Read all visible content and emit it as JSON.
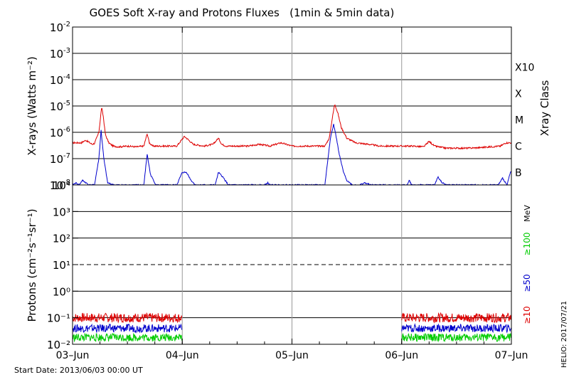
{
  "chart_data": [
    {
      "type": "line",
      "title": "GOES Soft X-ray and Protons Fluxes   (1min & 5min data)",
      "ylabel": "X-rays (Watts m⁻²)",
      "yscale": "log",
      "ylim": [
        1e-08,
        0.01
      ],
      "y_tick_base": "10",
      "y_tick_exponents": [
        "-8",
        "-7",
        "-6",
        "-5",
        "-4",
        "-3",
        "-2"
      ],
      "grid_levels": [
        1e-07,
        1e-06,
        1e-05,
        0.0001,
        0.001
      ],
      "right_axis_label": "Xray Class",
      "classes": [
        {
          "label": "B",
          "value": 1e-07
        },
        {
          "label": "C",
          "value": 1e-06
        },
        {
          "label": "M",
          "value": 1e-05
        },
        {
          "label": "X",
          "value": 0.0001
        },
        {
          "label": "X10",
          "value": 0.001
        }
      ],
      "series": [
        {
          "color": "#dd0000",
          "x": [
            0,
            0.08,
            0.12,
            0.18,
            0.2,
            0.24,
            0.265,
            0.28,
            0.3,
            0.33,
            0.37,
            0.42,
            0.5,
            0.58,
            0.65,
            0.68,
            0.7,
            0.73,
            0.78,
            0.85,
            0.95,
            1.02,
            1.06,
            1.1,
            1.2,
            1.28,
            1.33,
            1.36,
            1.4,
            1.5,
            1.6,
            1.7,
            1.8,
            1.9,
            2.0,
            2.1,
            2.2,
            2.3,
            2.34,
            2.37,
            2.39,
            2.42,
            2.45,
            2.5,
            2.58,
            2.7,
            2.8,
            2.9,
            3.0,
            3.1,
            3.2,
            3.25,
            3.3,
            3.4,
            3.5,
            3.6,
            3.7,
            3.8,
            3.9,
            3.95,
            4.0
          ],
          "y": [
            4e-07,
            4e-07,
            5e-07,
            3.5e-07,
            3.8e-07,
            1e-06,
            9e-06,
            4e-06,
            8e-07,
            4e-07,
            3e-07,
            2.8e-07,
            3e-07,
            2.8e-07,
            3e-07,
            9e-07,
            4e-07,
            3e-07,
            3e-07,
            3e-07,
            3e-07,
            7e-07,
            5e-07,
            3.5e-07,
            3e-07,
            3.5e-07,
            6e-07,
            3.5e-07,
            3e-07,
            3e-07,
            3e-07,
            3.5e-07,
            3e-07,
            4e-07,
            3e-07,
            3e-07,
            3e-07,
            3e-07,
            6e-07,
            4e-06,
            1.2e-05,
            5e-06,
            1.5e-06,
            6e-07,
            4e-07,
            3.5e-07,
            3e-07,
            3e-07,
            3e-07,
            3e-07,
            2.8e-07,
            4.5e-07,
            3e-07,
            2.5e-07,
            2.5e-07,
            2.5e-07,
            2.6e-07,
            2.8e-07,
            3e-07,
            4e-07,
            4e-07
          ]
        },
        {
          "color": "#0000cc",
          "x": [
            0,
            0.03,
            0.06,
            0.09,
            0.15,
            0.2,
            0.24,
            0.26,
            0.285,
            0.32,
            0.38,
            0.65,
            0.68,
            0.71,
            0.76,
            0.95,
            1.0,
            1.04,
            1.08,
            1.12,
            1.3,
            1.33,
            1.37,
            1.42,
            1.75,
            1.78,
            1.8,
            2.3,
            2.35,
            2.38,
            2.4,
            2.43,
            2.47,
            2.5,
            2.55,
            2.62,
            2.66,
            2.72,
            3.05,
            3.07,
            3.09,
            3.3,
            3.33,
            3.37,
            3.41,
            3.88,
            3.92,
            3.96,
            3.99
          ],
          "y": [
            1e-08,
            1.2e-08,
            1e-08,
            1.5e-08,
            1e-08,
            1e-08,
            1e-07,
            1.2e-06,
            1e-07,
            1.2e-08,
            1e-08,
            1e-08,
            1.5e-07,
            2.5e-08,
            1e-08,
            1e-08,
            3e-08,
            3e-08,
            1.5e-08,
            1e-08,
            1e-08,
            3e-08,
            2e-08,
            1e-08,
            1e-08,
            1.2e-08,
            1e-08,
            1e-08,
            6e-07,
            2e-06,
            8e-07,
            1.5e-07,
            3e-08,
            1.5e-08,
            1e-08,
            1e-08,
            1.2e-08,
            1e-08,
            1e-08,
            1.5e-08,
            1e-08,
            1e-08,
            2e-08,
            1.2e-08,
            1e-08,
            1e-08,
            1.8e-08,
            1e-08,
            3e-08
          ]
        }
      ]
    },
    {
      "type": "line",
      "ylabel": "Protons (cm⁻²s⁻¹sr⁻¹)",
      "yscale": "log",
      "ylim": [
        0.01,
        10000
      ],
      "y_tick_labels": [
        "10⁻²",
        "10⁻¹",
        "10⁰",
        "10¹",
        "10²",
        "10³",
        "10⁴"
      ],
      "grid_levels": [
        0.1,
        1,
        100,
        1000
      ],
      "dashed_level": 10,
      "unit_label": "MeV",
      "data_gap": [
        1.0,
        3.0
      ],
      "series": [
        {
          "name": "≥10",
          "color": "#dd0000",
          "x": [
            0,
            1.0,
            3.0,
            4.0
          ],
          "y": [
            0.1,
            0.1,
            0.1,
            0.1
          ]
        },
        {
          "name": "≥50",
          "color": "#0000cc",
          "x": [
            0,
            1.0,
            3.0,
            4.0
          ],
          "y": [
            0.04,
            0.04,
            0.04,
            0.04
          ]
        },
        {
          "name": "≥100",
          "color": "#00cc00",
          "x": [
            0,
            1.0,
            3.0,
            4.0
          ],
          "y": [
            0.018,
            0.018,
            0.018,
            0.018
          ]
        }
      ]
    }
  ],
  "x_axis": {
    "ticks": [
      {
        "label": "03–Jun",
        "value": 0
      },
      {
        "label": "04–Jun",
        "value": 1
      },
      {
        "label": "05–Jun",
        "value": 2
      },
      {
        "label": "06–Jun",
        "value": 3
      },
      {
        "label": "07–Jun",
        "value": 4
      }
    ],
    "range": [
      0,
      4.0
    ]
  },
  "footer": {
    "start_date": "Start Date: 2013/06/03 00:00 UT",
    "credit": "HELIO: 2017/07/21"
  },
  "colors": {
    "red": "#dd0000",
    "blue": "#0000cc",
    "green": "#00cc00"
  }
}
